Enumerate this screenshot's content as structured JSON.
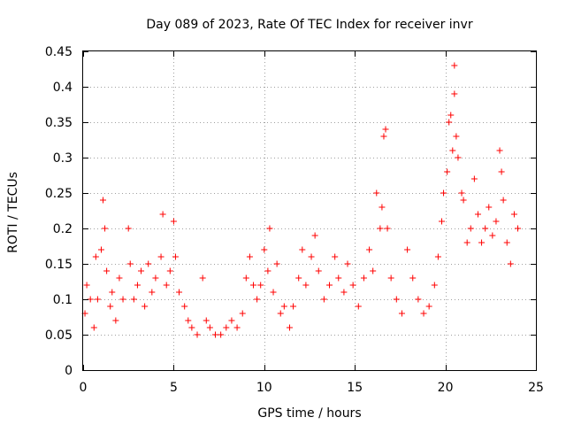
{
  "chart_data": {
    "type": "scatter",
    "title": "Day 089 of 2023, Rate Of TEC Index for receiver invr",
    "xlabel": "GPS time / hours",
    "ylabel": "ROTI / TECUs",
    "xlim": [
      0,
      25
    ],
    "ylim": [
      0,
      0.45
    ],
    "xticks": [
      "0",
      "5",
      "10",
      "15",
      "20",
      "25"
    ],
    "yticks": [
      "0",
      "0.05",
      "0.1",
      "0.15",
      "0.2",
      "0.25",
      "0.3",
      "0.35",
      "0.4",
      "0.45"
    ],
    "grid": true,
    "marker": "+",
    "color": "#ff0000",
    "series": [
      {
        "points": [
          [
            0.1,
            0.08
          ],
          [
            0.2,
            0.12
          ],
          [
            0.4,
            0.1
          ],
          [
            0.6,
            0.06
          ],
          [
            0.7,
            0.16
          ],
          [
            0.8,
            0.1
          ],
          [
            1.0,
            0.17
          ],
          [
            1.1,
            0.24
          ],
          [
            1.2,
            0.2
          ],
          [
            1.3,
            0.14
          ],
          [
            1.5,
            0.09
          ],
          [
            1.6,
            0.11
          ],
          [
            1.8,
            0.07
          ],
          [
            2.0,
            0.13
          ],
          [
            2.2,
            0.1
          ],
          [
            2.5,
            0.2
          ],
          [
            2.6,
            0.15
          ],
          [
            2.8,
            0.1
          ],
          [
            3.0,
            0.12
          ],
          [
            3.2,
            0.14
          ],
          [
            3.4,
            0.09
          ],
          [
            3.6,
            0.15
          ],
          [
            3.8,
            0.11
          ],
          [
            4.0,
            0.13
          ],
          [
            4.3,
            0.16
          ],
          [
            4.4,
            0.22
          ],
          [
            4.6,
            0.12
          ],
          [
            4.8,
            0.14
          ],
          [
            5.0,
            0.21
          ],
          [
            5.1,
            0.16
          ],
          [
            5.3,
            0.11
          ],
          [
            5.6,
            0.09
          ],
          [
            5.8,
            0.07
          ],
          [
            6.0,
            0.06
          ],
          [
            6.3,
            0.05
          ],
          [
            6.6,
            0.13
          ],
          [
            6.8,
            0.07
          ],
          [
            7.0,
            0.06
          ],
          [
            7.3,
            0.05
          ],
          [
            7.6,
            0.05
          ],
          [
            7.9,
            0.06
          ],
          [
            8.2,
            0.07
          ],
          [
            8.5,
            0.06
          ],
          [
            8.8,
            0.08
          ],
          [
            9.0,
            0.13
          ],
          [
            9.2,
            0.16
          ],
          [
            9.4,
            0.12
          ],
          [
            9.6,
            0.1
          ],
          [
            9.8,
            0.12
          ],
          [
            10.0,
            0.17
          ],
          [
            10.2,
            0.14
          ],
          [
            10.3,
            0.2
          ],
          [
            10.5,
            0.11
          ],
          [
            10.7,
            0.15
          ],
          [
            10.9,
            0.08
          ],
          [
            11.1,
            0.09
          ],
          [
            11.4,
            0.06
          ],
          [
            11.6,
            0.09
          ],
          [
            11.9,
            0.13
          ],
          [
            12.1,
            0.17
          ],
          [
            12.3,
            0.12
          ],
          [
            12.6,
            0.16
          ],
          [
            12.8,
            0.19
          ],
          [
            13.0,
            0.14
          ],
          [
            13.3,
            0.1
          ],
          [
            13.6,
            0.12
          ],
          [
            13.9,
            0.16
          ],
          [
            14.1,
            0.13
          ],
          [
            14.4,
            0.11
          ],
          [
            14.6,
            0.15
          ],
          [
            14.9,
            0.12
          ],
          [
            15.2,
            0.09
          ],
          [
            15.5,
            0.13
          ],
          [
            15.8,
            0.17
          ],
          [
            16.0,
            0.14
          ],
          [
            16.2,
            0.25
          ],
          [
            16.4,
            0.2
          ],
          [
            16.5,
            0.23
          ],
          [
            16.6,
            0.33
          ],
          [
            16.7,
            0.34
          ],
          [
            16.8,
            0.2
          ],
          [
            17.0,
            0.13
          ],
          [
            17.3,
            0.1
          ],
          [
            17.6,
            0.08
          ],
          [
            17.9,
            0.17
          ],
          [
            18.2,
            0.13
          ],
          [
            18.5,
            0.1
          ],
          [
            18.8,
            0.08
          ],
          [
            19.1,
            0.09
          ],
          [
            19.4,
            0.12
          ],
          [
            19.6,
            0.16
          ],
          [
            19.8,
            0.21
          ],
          [
            19.9,
            0.25
          ],
          [
            20.1,
            0.28
          ],
          [
            20.2,
            0.35
          ],
          [
            20.3,
            0.36
          ],
          [
            20.4,
            0.31
          ],
          [
            20.5,
            0.39
          ],
          [
            20.5,
            0.43
          ],
          [
            20.6,
            0.33
          ],
          [
            20.7,
            0.3
          ],
          [
            20.9,
            0.25
          ],
          [
            21.0,
            0.24
          ],
          [
            21.2,
            0.18
          ],
          [
            21.4,
            0.2
          ],
          [
            21.6,
            0.27
          ],
          [
            21.8,
            0.22
          ],
          [
            22.0,
            0.18
          ],
          [
            22.2,
            0.2
          ],
          [
            22.4,
            0.23
          ],
          [
            22.6,
            0.19
          ],
          [
            22.8,
            0.21
          ],
          [
            23.0,
            0.31
          ],
          [
            23.1,
            0.28
          ],
          [
            23.2,
            0.24
          ],
          [
            23.4,
            0.18
          ],
          [
            23.6,
            0.15
          ],
          [
            23.8,
            0.22
          ],
          [
            24.0,
            0.2
          ]
        ]
      }
    ]
  }
}
